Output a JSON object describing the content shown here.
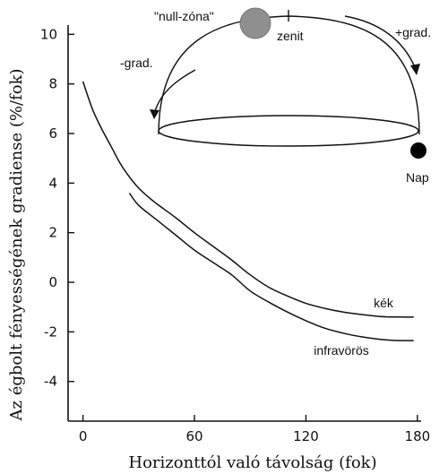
{
  "chart_data": {
    "type": "line",
    "xlabel": "Horizonttól való távolság (fok)",
    "ylabel": "Az égbolt fényességének gradiense (%/fok)",
    "xlim": [
      -8,
      182
    ],
    "ylim": [
      -5.6,
      10.3
    ],
    "x_ticks": [
      0,
      60,
      120,
      180
    ],
    "y_ticks": [
      10,
      8,
      6,
      4,
      2,
      0,
      -2,
      -4
    ],
    "grid": false,
    "series": [
      {
        "name": "kék",
        "color": "#111111",
        "x": [
          0,
          5,
          10,
          15,
          20,
          25,
          30,
          35,
          40,
          50,
          60,
          70,
          80,
          90,
          100,
          110,
          120,
          130,
          140,
          150,
          160,
          170,
          178
        ],
        "y": [
          8.1,
          7.0,
          6.2,
          5.5,
          4.8,
          4.25,
          3.8,
          3.45,
          3.15,
          2.6,
          2.0,
          1.45,
          0.9,
          0.3,
          -0.2,
          -0.55,
          -0.85,
          -1.05,
          -1.2,
          -1.3,
          -1.38,
          -1.4,
          -1.4
        ]
      },
      {
        "name": "infravörös",
        "color": "#111111",
        "x": [
          25,
          30,
          40,
          50,
          60,
          70,
          80,
          90,
          100,
          110,
          120,
          130,
          140,
          150,
          160,
          170,
          178
        ],
        "y": [
          3.6,
          3.1,
          2.5,
          1.9,
          1.3,
          0.8,
          0.3,
          -0.35,
          -0.8,
          -1.2,
          -1.55,
          -1.85,
          -2.05,
          -2.2,
          -2.3,
          -2.35,
          -2.35
        ]
      }
    ],
    "annotations": {
      "null_zone": "\"null-zóna\"",
      "zenith": "zenit",
      "minus_gradient": "-grad.",
      "plus_gradient": "+grad.",
      "sun": "Nap"
    }
  }
}
